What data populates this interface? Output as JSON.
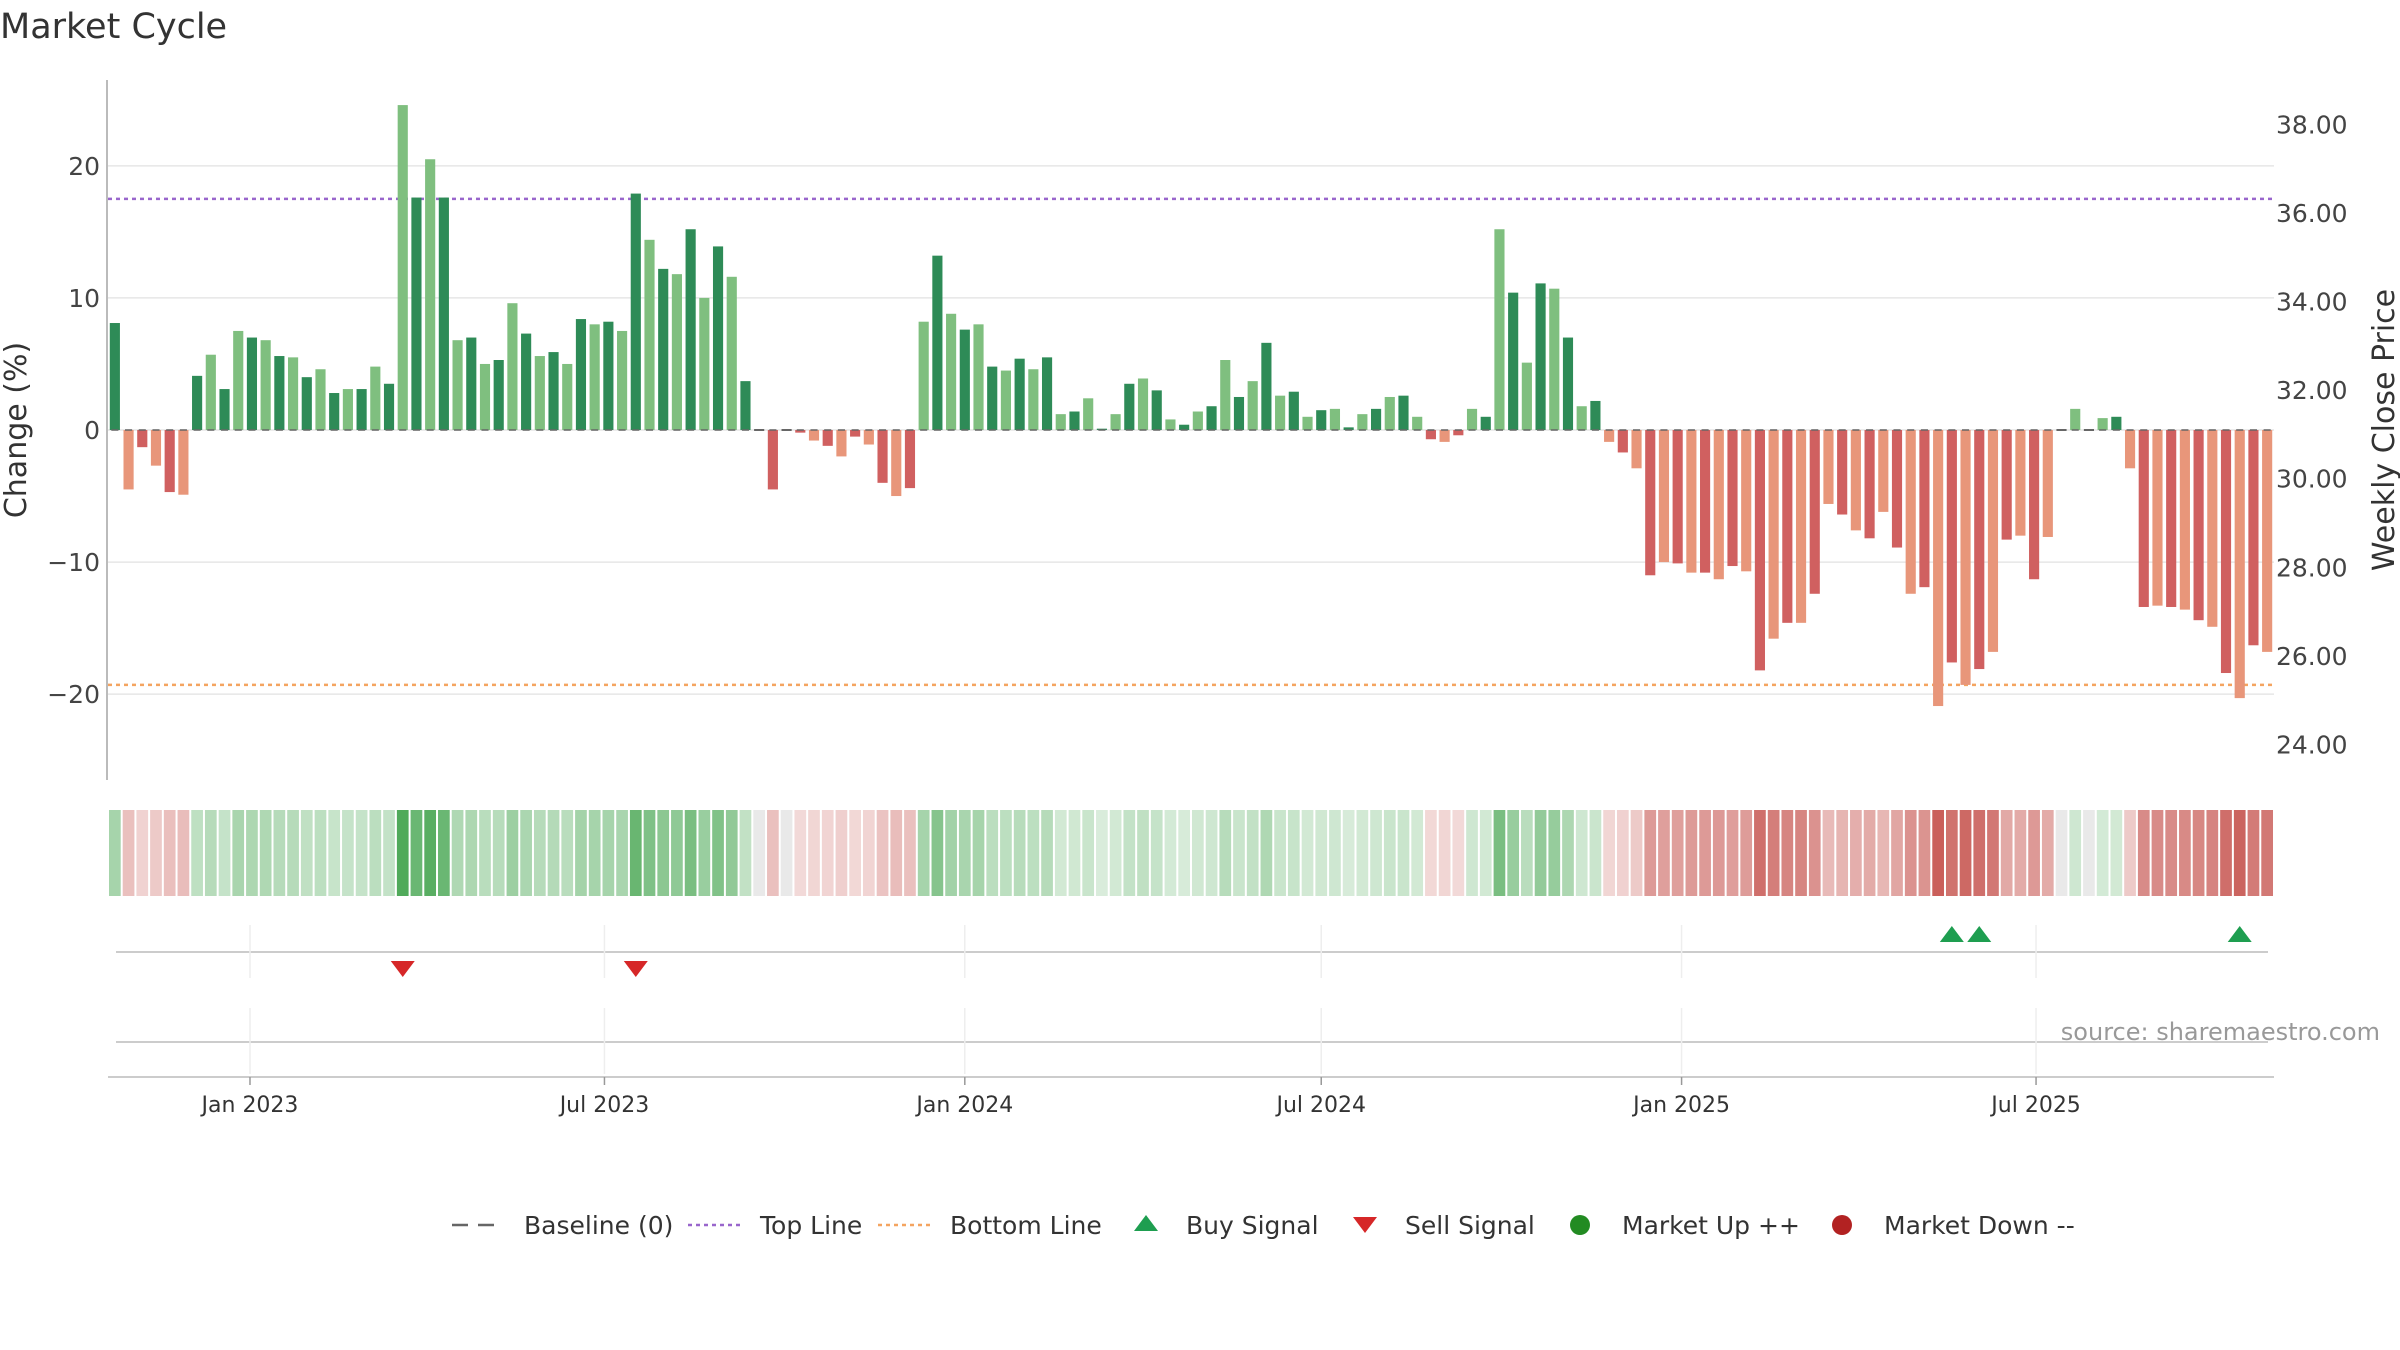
{
  "title": "Market Cycle",
  "source": "source: sharemaestro.com",
  "colors": {
    "up_dark": "#2e8b57",
    "up_light": "#7fbf7f",
    "down_dark": "#d06060",
    "down_light": "#e8967a",
    "top_line": "#9966cc",
    "bottom_line": "#f4a460",
    "buy": "#1e9e50",
    "sell": "#d62728",
    "market_up": "#228b22",
    "market_down": "#b22222",
    "baseline": "#666666"
  },
  "legend": [
    {
      "label": "Baseline (0)",
      "icon": "dash-line-icon"
    },
    {
      "label": "Top Line",
      "icon": "dotted-purple-line-icon"
    },
    {
      "label": "Bottom Line",
      "icon": "dotted-orange-line-icon"
    },
    {
      "label": "Buy Signal",
      "icon": "triangle-up-icon"
    },
    {
      "label": "Sell Signal",
      "icon": "triangle-down-icon"
    },
    {
      "label": "Market Up ++",
      "icon": "green-dot-icon"
    },
    {
      "label": "Market Down --",
      "icon": "red-dot-icon"
    }
  ],
  "chart_data": {
    "type": "bar",
    "title": "Market Cycle",
    "ylabel": "Change (%)",
    "y2label": "Weekly Close Price",
    "ylim": [
      -26.5,
      26.5
    ],
    "y2lim": [
      23.2,
      39.0
    ],
    "yticks": [
      -20,
      -10,
      0,
      10,
      20
    ],
    "y2ticks": [
      "24.00",
      "26.00",
      "28.00",
      "30.00",
      "32.00",
      "34.00",
      "36.00",
      "38.00"
    ],
    "top_line": 17.5,
    "bottom_line": -19.3,
    "x_start": "2022-10-24",
    "x_interval_days": 7,
    "xticks": [
      "Jan 2023",
      "Jul 2023",
      "Jan 2024",
      "Jul 2024",
      "Jan 2025",
      "Jul 2025"
    ],
    "xtick_dates": [
      "2023-01-01",
      "2023-07-01",
      "2024-01-01",
      "2024-07-01",
      "2025-01-01",
      "2025-07-01"
    ],
    "values": [
      8.1,
      -4.5,
      -1.3,
      -2.7,
      -4.7,
      -4.9,
      4.1,
      5.7,
      3.1,
      7.5,
      7.0,
      6.8,
      5.6,
      5.5,
      4.0,
      4.6,
      2.8,
      3.1,
      3.1,
      4.8,
      3.5,
      24.6,
      17.6,
      20.5,
      17.6,
      6.8,
      7.0,
      5.0,
      5.3,
      9.6,
      7.3,
      5.6,
      5.9,
      5.0,
      8.4,
      8.0,
      8.2,
      7.5,
      17.9,
      14.4,
      12.2,
      11.8,
      15.2,
      10.0,
      13.9,
      11.6,
      3.7,
      0,
      -4.5,
      0,
      -0.2,
      -0.8,
      -1.2,
      -2.0,
      -0.5,
      -1.1,
      -4.0,
      -5.0,
      -4.4,
      8.2,
      13.2,
      8.8,
      7.6,
      8.0,
      4.8,
      4.5,
      5.4,
      4.6,
      5.5,
      1.2,
      1.4,
      2.4,
      0.1,
      1.2,
      3.5,
      3.9,
      3.0,
      0.8,
      0.4,
      1.4,
      1.8,
      5.3,
      2.5,
      3.7,
      6.6,
      2.6,
      2.9,
      1.0,
      1.5,
      1.6,
      0.2,
      1.2,
      1.6,
      2.5,
      2.6,
      1.0,
      -0.7,
      -0.9,
      -0.4,
      1.6,
      1.0,
      15.2,
      10.4,
      5.1,
      11.1,
      10.7,
      7.0,
      1.8,
      2.2,
      -0.9,
      -1.7,
      -2.9,
      -11.0,
      -10.0,
      -10.1,
      -10.8,
      -10.8,
      -11.3,
      -10.3,
      -10.7,
      -18.2,
      -15.8,
      -14.6,
      -14.6,
      -12.4,
      -5.6,
      -6.4,
      -7.6,
      -8.2,
      -6.2,
      -8.9,
      -12.4,
      -11.9,
      -20.9,
      -17.6,
      -19.3,
      -18.1,
      -16.8,
      -8.3,
      -8.0,
      -11.3,
      -8.1,
      0,
      1.6,
      0,
      0.9,
      1.0,
      -2.9,
      -13.4,
      -13.3,
      -13.4,
      -13.6,
      -14.4,
      -14.9,
      -18.4,
      -20.3,
      -16.3,
      -16.8
    ],
    "buy_signal_weeks": [
      134,
      136,
      155
    ],
    "sell_signal_weeks": [
      21,
      38
    ],
    "grid": true,
    "legend_position": "bottom"
  }
}
